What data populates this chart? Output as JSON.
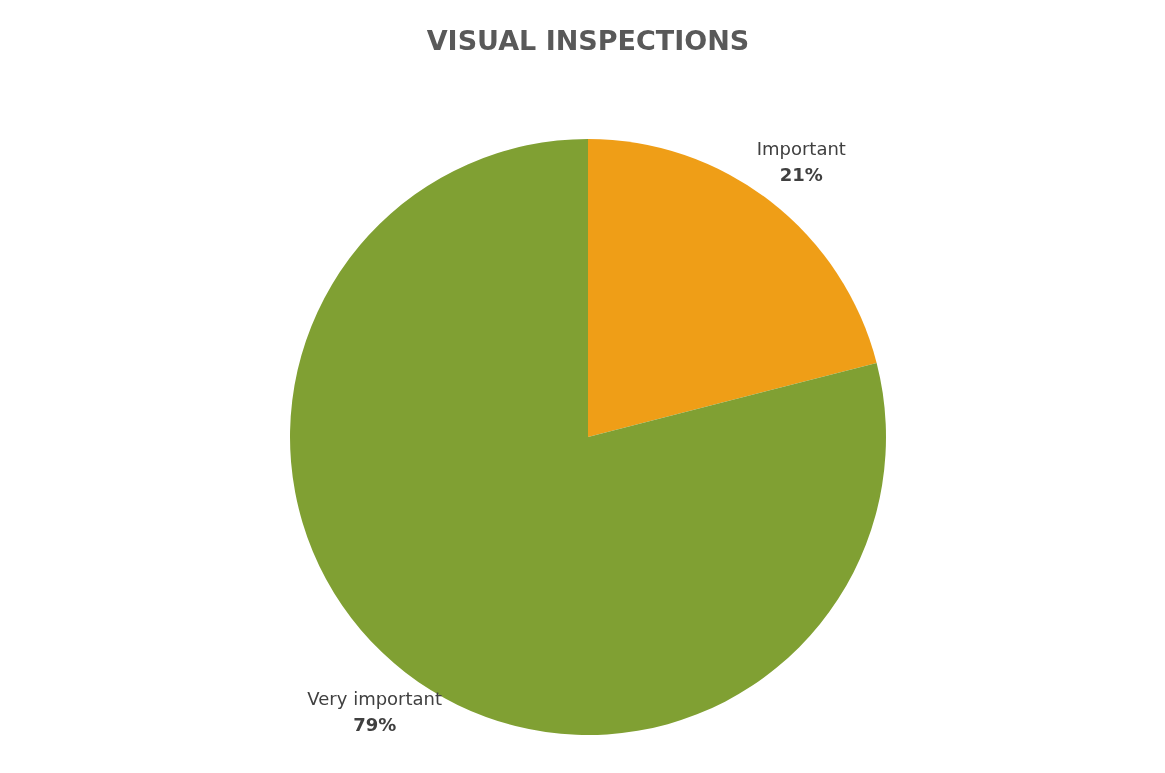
{
  "chart_data": {
    "type": "pie",
    "title": "VISUAL INSPECTIONS",
    "categories": [
      "Important",
      "Very important"
    ],
    "values": [
      21,
      79
    ],
    "colors": [
      "#ef9e17",
      "#80a033"
    ],
    "value_labels": [
      "21%",
      "79%"
    ]
  }
}
